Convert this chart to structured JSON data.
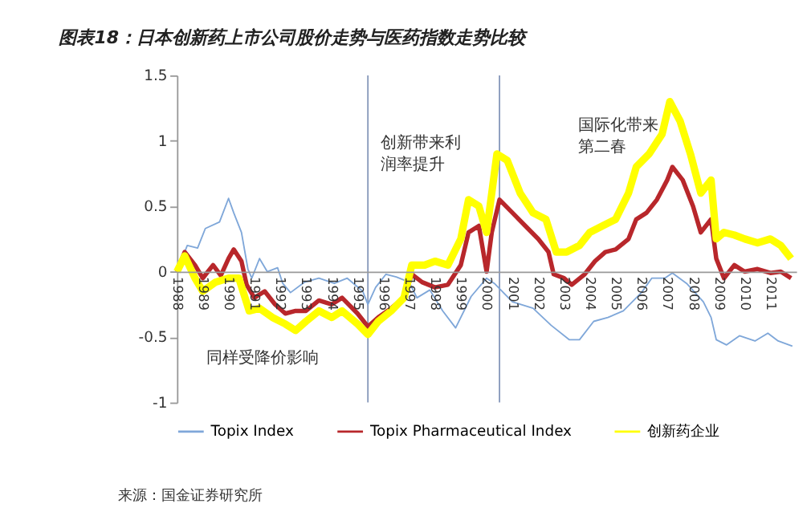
{
  "chart_data": {
    "type": "line",
    "title": "图表18：日本创新药上市公司股价走势与医药指数走势比较",
    "xlim": [
      1988,
      2012
    ],
    "xticks": [
      1988,
      1989,
      1990,
      1991,
      1992,
      1993,
      1994,
      1995,
      1996,
      1997,
      1998,
      1999,
      2000,
      2001,
      2002,
      2003,
      2004,
      2005,
      2006,
      2007,
      2008,
      2009,
      2010,
      2011
    ],
    "ylim": [
      -1,
      1.5
    ],
    "yticks": [
      -1,
      -0.5,
      0,
      0.5,
      1,
      1.5
    ],
    "grid": false,
    "legend": "bottom",
    "series": [
      {
        "name": "Topix Index",
        "color": "#7fa7d9",
        "x": [
          1988,
          1988.4,
          1988.8,
          1989.1,
          1989.65,
          1990.0,
          1990.2,
          1990.5,
          1990.75,
          1990.9,
          1991.2,
          1991.5,
          1991.9,
          1992.1,
          1992.4,
          1992.95,
          1993.5,
          1994.1,
          1994.6,
          1995.2,
          1995.4,
          1995.7,
          1996.1,
          1996.5,
          1997.0,
          1997.3,
          1997.8,
          1998.3,
          1998.8,
          1999.4,
          2000.0,
          2000.3,
          2001.0,
          2001.8,
          2002.5,
          2003.2,
          2003.6,
          2004.15,
          2004.7,
          2005.3,
          2006.0,
          2006.4,
          2006.9,
          2007.2,
          2007.75,
          2008.4,
          2008.7,
          2008.9,
          2009.3,
          2009.8,
          2010.4,
          2010.9,
          2011.3,
          2011.85
        ],
        "values": [
          0,
          0.2,
          0.18,
          0.33,
          0.38,
          0.56,
          0.45,
          0.3,
          0.02,
          -0.05,
          0.1,
          0,
          0.03,
          -0.09,
          -0.16,
          -0.08,
          -0.05,
          -0.09,
          -0.05,
          -0.15,
          -0.25,
          -0.12,
          -0.02,
          -0.04,
          -0.08,
          -0.2,
          -0.14,
          -0.3,
          -0.43,
          -0.19,
          -0.05,
          -0.09,
          -0.23,
          -0.28,
          -0.41,
          -0.52,
          -0.52,
          -0.38,
          -0.35,
          -0.3,
          -0.16,
          -0.05,
          -0.05,
          -0.01,
          -0.09,
          -0.23,
          -0.35,
          -0.52,
          -0.56,
          -0.49,
          -0.53,
          -0.47,
          -0.53,
          -0.57
        ]
      },
      {
        "name": "Topix Pharmaceutical Index",
        "color": "#b8272b",
        "x": [
          1988,
          1988.3,
          1988.7,
          1989.0,
          1989.4,
          1989.7,
          1990.0,
          1990.2,
          1990.5,
          1990.7,
          1991.0,
          1991.4,
          1991.8,
          1992.2,
          1992.6,
          1993.0,
          1993.5,
          1994.0,
          1994.4,
          1995.0,
          1995.4,
          1995.8,
          1996.3,
          1996.8,
          1997.1,
          1997.5,
          1998.0,
          1998.5,
          1999.0,
          1999.3,
          1999.7,
          2000.0,
          2000.2,
          2000.5,
          2001.0,
          2001.5,
          2002.0,
          2002.4,
          2002.6,
          2003.0,
          2003.3,
          2003.8,
          2004.2,
          2004.6,
          2005.0,
          2005.5,
          2005.8,
          2006.2,
          2006.6,
          2007.0,
          2007.2,
          2007.6,
          2008.0,
          2008.3,
          2008.7,
          2008.9,
          2009.2,
          2009.6,
          2010.0,
          2010.5,
          2011.0,
          2011.4,
          2011.8
        ],
        "values": [
          0,
          0.15,
          0.05,
          -0.05,
          0.05,
          -0.03,
          0.1,
          0.17,
          0.08,
          -0.1,
          -0.2,
          -0.15,
          -0.25,
          -0.32,
          -0.3,
          -0.3,
          -0.22,
          -0.25,
          -0.2,
          -0.32,
          -0.42,
          -0.35,
          -0.28,
          -0.2,
          -0.02,
          -0.08,
          -0.12,
          -0.1,
          0.05,
          0.3,
          0.35,
          0,
          0.3,
          0.55,
          0.45,
          0.35,
          0.25,
          0.15,
          -0.02,
          -0.05,
          -0.1,
          -0.02,
          0.08,
          0.15,
          0.17,
          0.25,
          0.4,
          0.45,
          0.55,
          0.7,
          0.8,
          0.7,
          0.5,
          0.3,
          0.4,
          0.1,
          -0.05,
          0.05,
          0,
          0.02,
          -0.01,
          0,
          -0.05
        ]
      },
      {
        "name": "创新药企业",
        "color": "#ffff00",
        "x": [
          1988,
          1988.3,
          1988.7,
          1989.0,
          1989.5,
          1990.0,
          1990.4,
          1990.8,
          1991.2,
          1991.7,
          1992.2,
          1992.6,
          1993.0,
          1993.5,
          1994.0,
          1994.4,
          1995.0,
          1995.4,
          1995.8,
          1996.3,
          1996.8,
          1997.1,
          1997.6,
          1998.0,
          1998.5,
          1999.0,
          1999.3,
          1999.7,
          2000.0,
          2000.4,
          2000.8,
          2001.3,
          2001.8,
          2002.3,
          2002.7,
          2003.1,
          2003.6,
          2004.0,
          2004.5,
          2005.0,
          2005.5,
          2005.8,
          2006.3,
          2006.8,
          2007.1,
          2007.5,
          2007.9,
          2008.3,
          2008.7,
          2008.9,
          2009.2,
          2009.6,
          2010.0,
          2010.5,
          2011.0,
          2011.4,
          2011.8
        ],
        "values": [
          0,
          0.12,
          -0.05,
          -0.15,
          -0.08,
          -0.05,
          -0.05,
          -0.3,
          -0.28,
          -0.35,
          -0.4,
          -0.45,
          -0.38,
          -0.3,
          -0.35,
          -0.3,
          -0.4,
          -0.48,
          -0.38,
          -0.3,
          -0.2,
          0.05,
          0.05,
          0.08,
          0.05,
          0.25,
          0.55,
          0.5,
          0.3,
          0.9,
          0.85,
          0.6,
          0.45,
          0.4,
          0.15,
          0.15,
          0.2,
          0.3,
          0.35,
          0.4,
          0.6,
          0.8,
          0.9,
          1.05,
          1.3,
          1.15,
          0.9,
          0.6,
          0.7,
          0.25,
          0.3,
          0.28,
          0.25,
          0.22,
          0.25,
          0.2,
          0.1
        ]
      }
    ],
    "ref_lines": [
      {
        "axis": "x",
        "value": 1995.4,
        "color": "#8899bb"
      },
      {
        "axis": "x",
        "value": 2000.5,
        "color": "#8899bb"
      }
    ],
    "annotations": [
      "创新带来利润率提升",
      "国际化带来第二春",
      "同样受降价影响",
      "来源：国金证券研究所"
    ]
  }
}
